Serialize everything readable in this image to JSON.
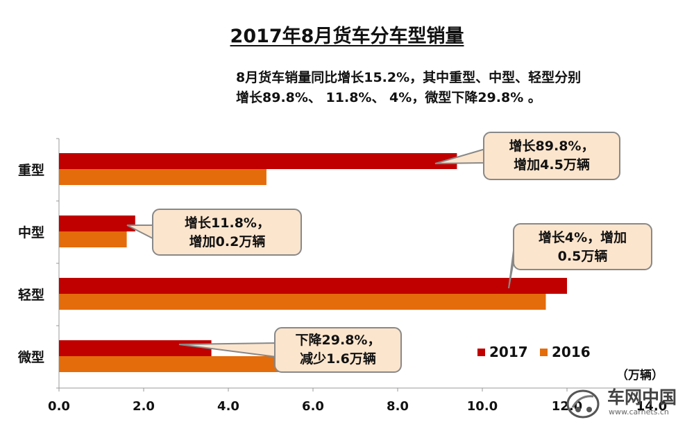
{
  "chart_data": {
    "type": "bar",
    "orientation": "horizontal",
    "title": "2017年8月货车分车型销量",
    "subtitle": [
      "8月货车销量同比增长15.2%，其中重型、中型、轻型分别",
      "增长89.8%、 11.8%、 4%，微型下降29.8% 。"
    ],
    "categories": [
      "重型",
      "中型",
      "轻型",
      "微型"
    ],
    "series": [
      {
        "name": "2017",
        "values": [
          9.4,
          1.8,
          12.0,
          3.6
        ],
        "color": "#C00000"
      },
      {
        "name": "2016",
        "values": [
          4.9,
          1.6,
          11.5,
          5.2
        ],
        "color": "#E46C0A"
      }
    ],
    "xlim": [
      0,
      14
    ],
    "xticks": [
      "0.0",
      "2.0",
      "4.0",
      "6.0",
      "8.0",
      "10.0",
      "12.0",
      "14.0"
    ],
    "unit": "（万辆）",
    "legend_position": "bottom-right",
    "annotations": [
      {
        "category": "重型",
        "lines": [
          "增长89.8%，",
          "增加4.5万辆"
        ]
      },
      {
        "category": "中型",
        "lines": [
          "增长11.8%，",
          "增加0.2万辆"
        ]
      },
      {
        "category": "轻型",
        "lines": [
          "增长4%，增加",
          "0.5万辆"
        ]
      },
      {
        "category": "微型",
        "lines": [
          "下降29.8%，",
          "减少1.6万辆"
        ]
      }
    ]
  },
  "watermark": {
    "text": "车网中国",
    "url": "www.carnets.cn"
  }
}
